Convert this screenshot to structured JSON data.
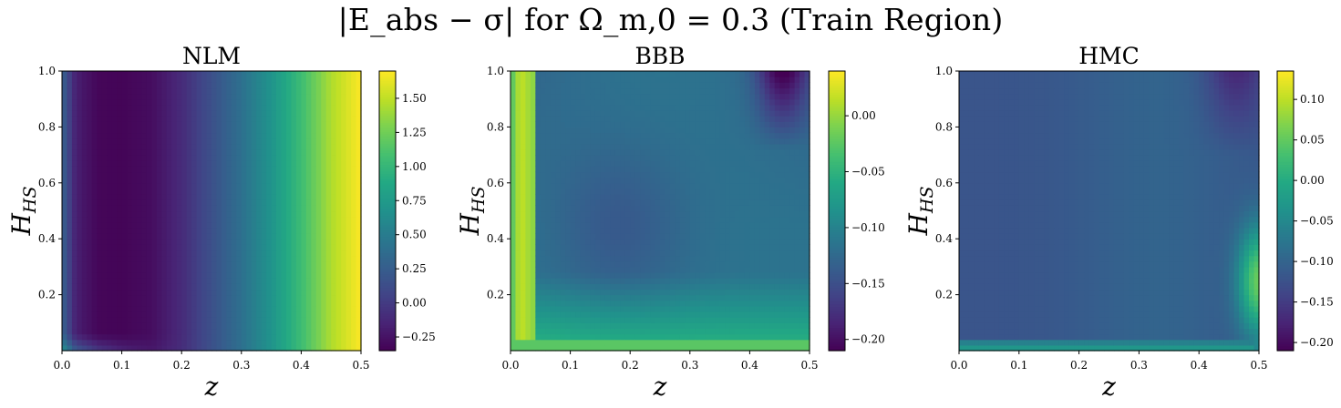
{
  "suptitle": "|E_abs − σ| for Ω_m,0 = 0.3 (Train Region)",
  "chart_data": [
    {
      "type": "heatmap",
      "title": "NLM",
      "xlabel": "z",
      "ylabel": "H_HS",
      "xlim": [
        0.0,
        0.5
      ],
      "ylim": [
        0.0,
        1.0
      ],
      "xticks": [
        "0.0",
        "0.1",
        "0.2",
        "0.3",
        "0.4",
        "0.5"
      ],
      "yticks": [
        "0.2",
        "0.4",
        "0.6",
        "0.8",
        "1.0"
      ],
      "colorbar_range": [
        -0.35,
        1.7
      ],
      "colorbar_ticks": [
        "−0.25",
        "0.00",
        "0.25",
        "0.50",
        "0.75",
        "1.00",
        "1.25",
        "1.50"
      ],
      "colorbar_tick_values": [
        -0.25,
        0.0,
        0.25,
        0.5,
        0.75,
        1.0,
        1.25,
        1.5
      ],
      "colormap": "viridis",
      "z_profile": {
        "z": [
          0.0,
          0.03,
          0.06,
          0.1,
          0.15,
          0.2,
          0.25,
          0.3,
          0.35,
          0.4,
          0.45,
          0.5
        ],
        "value": [
          0.05,
          -0.2,
          -0.32,
          -0.33,
          -0.28,
          -0.1,
          0.15,
          0.4,
          0.7,
          1.05,
          1.45,
          1.7
        ]
      }
    },
    {
      "type": "heatmap",
      "title": "BBB",
      "xlabel": "z",
      "ylabel": "H_HS",
      "xlim": [
        0.0,
        0.5
      ],
      "ylim": [
        0.0,
        1.0
      ],
      "xticks": [
        "0.0",
        "0.1",
        "0.2",
        "0.3",
        "0.4",
        "0.5"
      ],
      "yticks": [
        "0.2",
        "0.4",
        "0.6",
        "0.8",
        "1.0"
      ],
      "colorbar_range": [
        -0.21,
        0.04
      ],
      "colorbar_ticks": [
        "−0.20",
        "−0.15",
        "−0.10",
        "−0.05",
        "0.00"
      ],
      "colorbar_tick_values": [
        -0.2,
        -0.15,
        -0.1,
        -0.05,
        0.0
      ],
      "colormap": "viridis"
    },
    {
      "type": "heatmap",
      "title": "HMC",
      "xlabel": "z",
      "ylabel": "H_HS",
      "xlim": [
        0.0,
        0.5
      ],
      "ylim": [
        0.0,
        1.0
      ],
      "xticks": [
        "0.0",
        "0.1",
        "0.2",
        "0.3",
        "0.4",
        "0.5"
      ],
      "yticks": [
        "0.2",
        "0.4",
        "0.6",
        "0.8",
        "1.0"
      ],
      "colorbar_range": [
        -0.21,
        0.135
      ],
      "colorbar_ticks": [
        "−0.20",
        "−0.15",
        "−0.10",
        "−0.05",
        "0.00",
        "0.05",
        "0.10"
      ],
      "colorbar_tick_values": [
        -0.2,
        -0.15,
        -0.1,
        -0.05,
        0.0,
        0.05,
        0.1
      ],
      "colormap": "viridis"
    }
  ]
}
